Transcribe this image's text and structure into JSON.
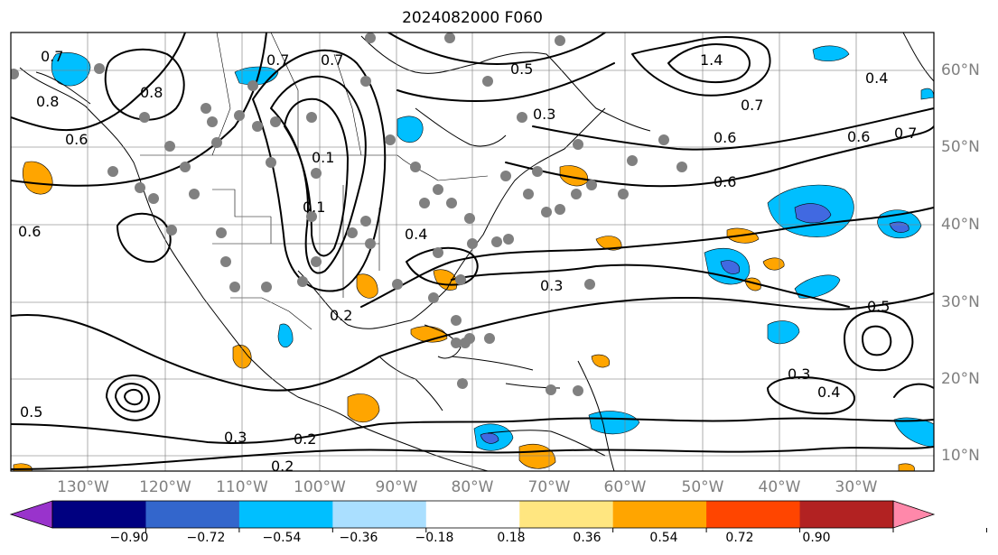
{
  "title": "2024082000 F060",
  "map": {
    "lon_labels": [
      "130°W",
      "120°W",
      "110°W",
      "100°W",
      "90°W",
      "80°W",
      "70°W",
      "60°W",
      "50°W",
      "40°W",
      "30°W"
    ],
    "lat_labels": [
      "60°N",
      "50°N",
      "40°N",
      "30°N",
      "20°N",
      "10°N"
    ],
    "contour_labels": [
      "0.7",
      "0.8",
      "0.8",
      "0.6",
      "0.6",
      "0.7",
      "0.7",
      "0.5",
      "0.3",
      "0.6",
      "0.7",
      "0.6",
      "1.4",
      "0.4",
      "0.7",
      "0.6",
      "0.2",
      "0.4",
      "0.3",
      "0.5",
      "0.3",
      "0.4",
      "0.2",
      "0.3",
      "0.2",
      "0.5",
      "0.1",
      "0.1"
    ],
    "colors": {
      "orange": "#ffa500",
      "light_orange": "#ffe680",
      "deep_sky_blue": "#00bfff",
      "light_blue": "#aadfff",
      "royal_blue": "#4169e1",
      "purple": "#8a2be2",
      "station_dot": "#808080"
    }
  },
  "colorbar": {
    "ticks": [
      "−0.90",
      "−0.72",
      "−0.54",
      "−0.36",
      "−0.18",
      "0.18",
      "0.36",
      "0.54",
      "0.72",
      "0.90"
    ],
    "colors": [
      "#9933cc",
      "#000080",
      "#3366cc",
      "#00bfff",
      "#aadfff",
      "#ffffff",
      "#ffe680",
      "#ffa500",
      "#ff4500",
      "#b22222",
      "#ff88aa"
    ]
  }
}
